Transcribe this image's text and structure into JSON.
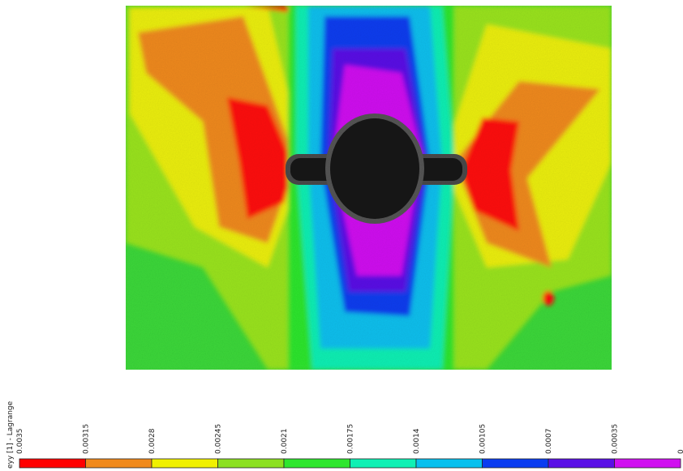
{
  "legend": {
    "title": "eyy [1] - Lagrange",
    "ticks": [
      "0.0035",
      "0.00315",
      "0.0028",
      "0.00245",
      "0.0021",
      "0.00175",
      "0.0014",
      "0.00105",
      "0.0007",
      "0.00035",
      "0"
    ],
    "colors": [
      "#ff0000",
      "#f08a1c",
      "#f0f000",
      "#8ce020",
      "#2ee62e",
      "#10f0b4",
      "#08c0ee",
      "#0a3cf0",
      "#5a10e6",
      "#d010f0"
    ]
  }
}
